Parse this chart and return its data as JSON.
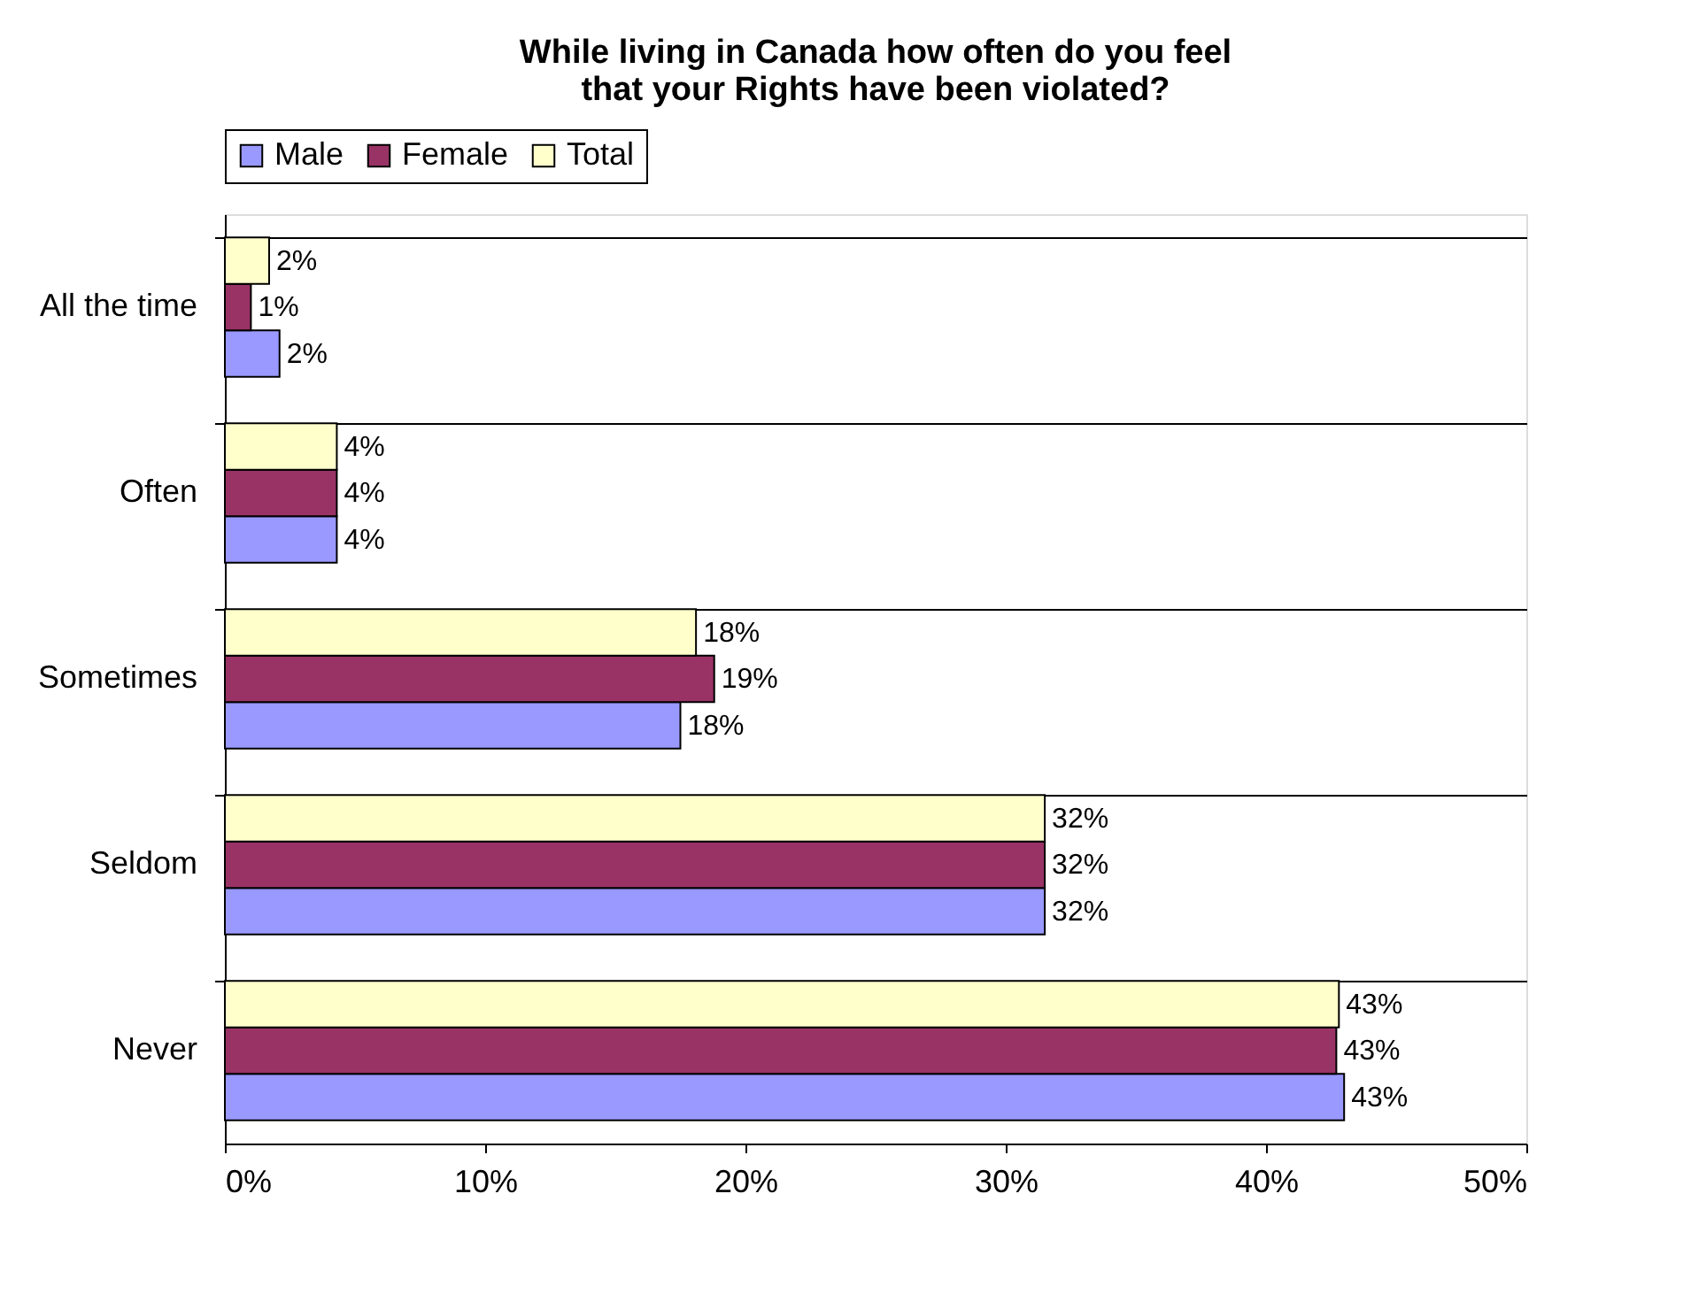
{
  "chart_data": {
    "type": "bar",
    "orientation": "horizontal",
    "title": "While living in Canada how often do you feel that your Rights have been violated?",
    "categories": [
      "All the time",
      "Often",
      "Sometimes",
      "Seldom",
      "Never"
    ],
    "series": [
      {
        "name": "Male",
        "color": "#9999ff",
        "values": [
          2.1,
          4.3,
          17.5,
          31.5,
          43.0
        ],
        "value_labels": [
          "2%",
          "4%",
          "18%",
          "32%",
          "43%"
        ]
      },
      {
        "name": "Female",
        "color": "#993366",
        "values": [
          1.0,
          4.3,
          18.8,
          31.5,
          42.7
        ],
        "value_labels": [
          "1%",
          "4%",
          "19%",
          "32%",
          "43%"
        ]
      },
      {
        "name": "Total",
        "color": "#ffffcc",
        "values": [
          1.7,
          4.3,
          18.1,
          31.5,
          42.8
        ],
        "value_labels": [
          "2%",
          "4%",
          "18%",
          "32%",
          "43%"
        ]
      }
    ],
    "xlim": [
      0,
      50
    ],
    "xticks": [
      {
        "value": 0,
        "label": "0%"
      },
      {
        "value": 10,
        "label": "10%"
      },
      {
        "value": 20,
        "label": "20%"
      },
      {
        "value": 30,
        "label": "30%"
      },
      {
        "value": 40,
        "label": "40%"
      },
      {
        "value": 50,
        "label": "50%"
      }
    ],
    "grid": "y",
    "legend": "top"
  }
}
